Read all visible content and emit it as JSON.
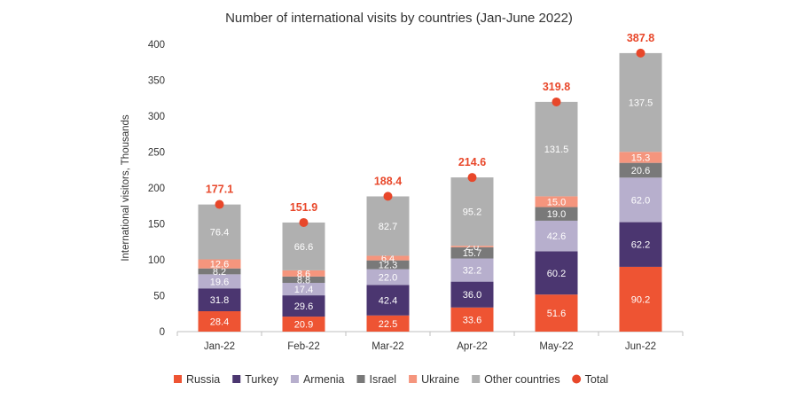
{
  "chart_data": {
    "type": "bar",
    "stacked": true,
    "title": "Number of international visits by countries (Jan-June 2022)",
    "ylabel": "International visitors, Thousands",
    "xlabel": "",
    "ylim": [
      0,
      400
    ],
    "yticks": [
      "0",
      "50",
      "100",
      "150",
      "200",
      "250",
      "300",
      "350",
      "400"
    ],
    "yticks_values": [
      0,
      50,
      100,
      150,
      200,
      250,
      300,
      350,
      400
    ],
    "grid": false,
    "legend_position": "bottom",
    "categories": [
      "Jan-22",
      "Feb-22",
      "Mar-22",
      "Apr-22",
      "May-22",
      "Jun-22"
    ],
    "series": [
      {
        "name": "Russia",
        "color": "#ee5433",
        "values": [
          28.4,
          20.9,
          22.5,
          33.6,
          51.6,
          90.2
        ],
        "labels": [
          "28.4",
          "20.9",
          "22.5",
          "33.6",
          "51.6",
          "90.2"
        ]
      },
      {
        "name": "Turkey",
        "color": "#4b3670",
        "values": [
          31.8,
          29.6,
          42.4,
          36.0,
          60.2,
          62.2
        ],
        "labels": [
          "31.8",
          "29.6",
          "42.4",
          "36.0",
          "60.2",
          "62.2"
        ]
      },
      {
        "name": "Armenia",
        "color": "#b7afcd",
        "values": [
          19.6,
          17.4,
          22.0,
          32.2,
          42.6,
          62.0
        ],
        "labels": [
          "19.6",
          "17.4",
          "22.0",
          "32.2",
          "42.6",
          "62.0"
        ]
      },
      {
        "name": "Israel",
        "color": "#797979",
        "values": [
          8.2,
          8.8,
          12.3,
          15.7,
          19.0,
          20.6
        ],
        "labels": [
          "8.2",
          "8.8",
          "12.3",
          "15.7",
          "19.0",
          "20.6"
        ]
      },
      {
        "name": "Ukraine",
        "color": "#f5957d",
        "values": [
          12.6,
          8.6,
          6.4,
          2.0,
          15.0,
          15.3
        ],
        "labels": [
          "12.6",
          "8.6",
          "6.4",
          "2.0",
          "15.0",
          "15.3"
        ]
      },
      {
        "name": "Other countries",
        "color": "#b0b0b0",
        "values": [
          76.4,
          66.6,
          82.7,
          95.2,
          131.5,
          137.5
        ],
        "labels": [
          "76.4",
          "66.6",
          "82.7",
          "95.2",
          "131.5",
          "137.5"
        ]
      }
    ],
    "total": {
      "name": "Total",
      "color": "#e8472a",
      "values": [
        177.1,
        151.9,
        188.4,
        214.6,
        319.8,
        387.8
      ],
      "labels": [
        "177.1",
        "151.9",
        "188.4",
        "214.6",
        "319.8",
        "387.8"
      ]
    }
  }
}
